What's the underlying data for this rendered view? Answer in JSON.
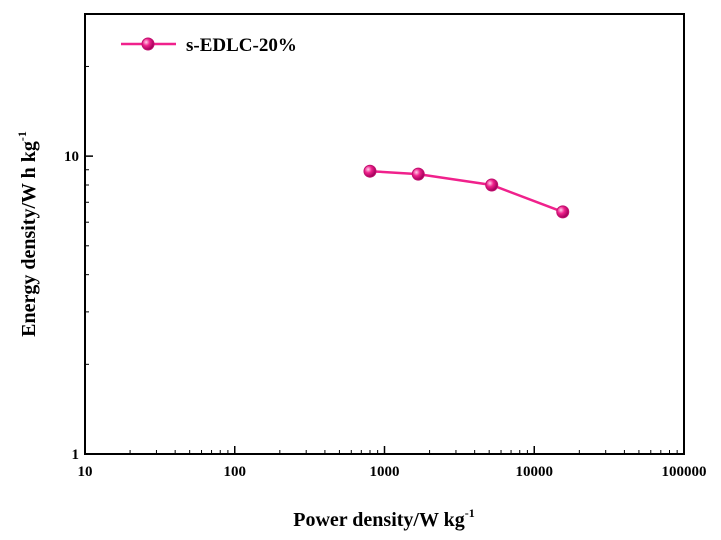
{
  "chart_data": {
    "type": "line",
    "xscale": "log",
    "yscale": "log",
    "xlim": [
      10,
      100000
    ],
    "ylim": [
      1,
      30
    ],
    "xlabel": {
      "text": "Power density/W kg",
      "sup": "-1"
    },
    "ylabel": {
      "text": "Energy density/W h kg",
      "sup": "-1"
    },
    "xticks": [
      {
        "value": 10,
        "label": "10"
      },
      {
        "value": 100,
        "label": "100"
      },
      {
        "value": 1000,
        "label": "1000"
      },
      {
        "value": 10000,
        "label": "10000"
      },
      {
        "value": 100000,
        "label": "100000"
      }
    ],
    "yticks": [
      {
        "value": 1,
        "label": "1"
      },
      {
        "value": 10,
        "label": "10"
      }
    ],
    "grid": false,
    "legend_position": "top-left",
    "series": [
      {
        "name": "s-EDLC-20%",
        "color": "#f0218c",
        "x": [
          800,
          1680,
          5200,
          15500
        ],
        "y": [
          8.9,
          8.7,
          8.0,
          6.5
        ]
      }
    ]
  }
}
